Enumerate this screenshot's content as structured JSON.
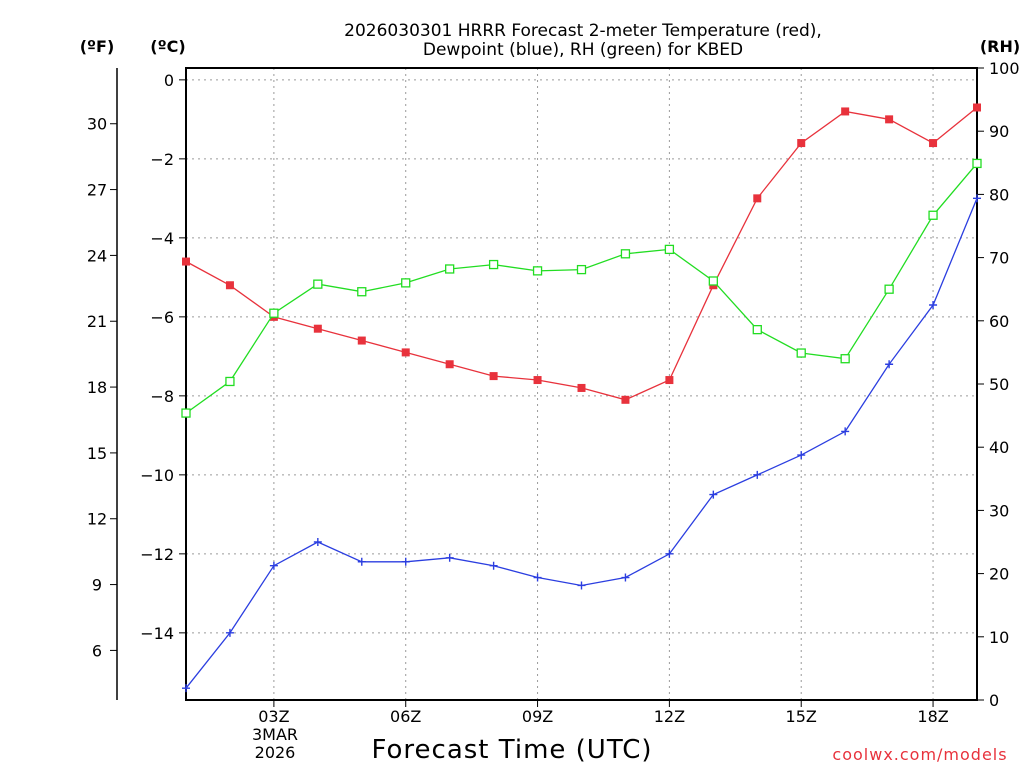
{
  "chart_data": {
    "type": "line",
    "title_line1": "2026030301 HRRR Forecast 2-meter Temperature (red),",
    "title_line2": "Dewpoint (blue), RH (green) for KBED",
    "xlabel": "Forecast Time (UTC)",
    "left_unit_f": "(ºF)",
    "left_unit_c": "(ºC)",
    "right_unit": "(RH)",
    "credit": "coolwx.com/models",
    "x_hours": [
      1,
      2,
      3,
      4,
      5,
      6,
      7,
      8,
      9,
      10,
      11,
      12,
      13,
      14,
      15,
      16,
      17,
      18,
      19
    ],
    "xlim": [
      1,
      19
    ],
    "x_ticks": [
      {
        "hour": 3,
        "label": "03Z"
      },
      {
        "hour": 6,
        "label": "06Z"
      },
      {
        "hour": 9,
        "label": "09Z"
      },
      {
        "hour": 12,
        "label": "12Z"
      },
      {
        "hour": 15,
        "label": "15Z"
      },
      {
        "hour": 18,
        "label": "18Z"
      }
    ],
    "date_label_line1": "3MAR",
    "date_label_line2": "2026",
    "ylim_c": [
      -15.7,
      0.3
    ],
    "ylim_rh": [
      0,
      100
    ],
    "c_ticks": [
      "0",
      "−2",
      "−4",
      "−6",
      "−8",
      "−10",
      "−12",
      "−14"
    ],
    "c_tick_values": [
      0,
      -2,
      -4,
      -6,
      -8,
      -10,
      -12,
      -14
    ],
    "f_ticks": [
      "30",
      "27",
      "24",
      "21",
      "18",
      "15",
      "12",
      "9",
      "6"
    ],
    "f_tick_values": [
      30,
      27,
      24,
      21,
      18,
      15,
      12,
      9,
      6
    ],
    "rh_ticks": [
      "0",
      "10",
      "20",
      "30",
      "40",
      "50",
      "60",
      "70",
      "80",
      "90",
      "100"
    ],
    "rh_tick_values": [
      0,
      10,
      20,
      30,
      40,
      50,
      60,
      70,
      80,
      90,
      100
    ],
    "series": [
      {
        "name": "Temperature",
        "axis": "celsius",
        "color": "#e8323c",
        "marker": "filled-square",
        "values": [
          -4.6,
          -5.2,
          -6.0,
          -6.3,
          -6.6,
          -6.9,
          -7.2,
          -7.5,
          -7.6,
          -7.8,
          -8.1,
          -7.6,
          -5.2,
          -3.0,
          -1.6,
          -0.8,
          -1.0,
          -1.6,
          -0.7
        ]
      },
      {
        "name": "Dewpoint",
        "axis": "celsius",
        "color": "#2b3ee0",
        "marker": "plus",
        "values": [
          -15.4,
          -14.0,
          -12.3,
          -11.7,
          -12.2,
          -12.2,
          -12.1,
          -12.3,
          -12.6,
          -12.8,
          -12.6,
          -12.0,
          -10.5,
          -10.0,
          -9.5,
          -8.9,
          -7.2,
          -5.7,
          -3.0
        ]
      },
      {
        "name": "Relative Humidity",
        "axis": "rh",
        "color": "#22dd22",
        "marker": "open-square",
        "values": [
          45.4,
          50.4,
          61.2,
          65.8,
          64.6,
          66.0,
          68.2,
          68.9,
          67.9,
          68.1,
          70.6,
          71.3,
          66.3,
          58.6,
          54.9,
          54.0,
          65.0,
          76.7,
          84.9
        ]
      }
    ]
  }
}
